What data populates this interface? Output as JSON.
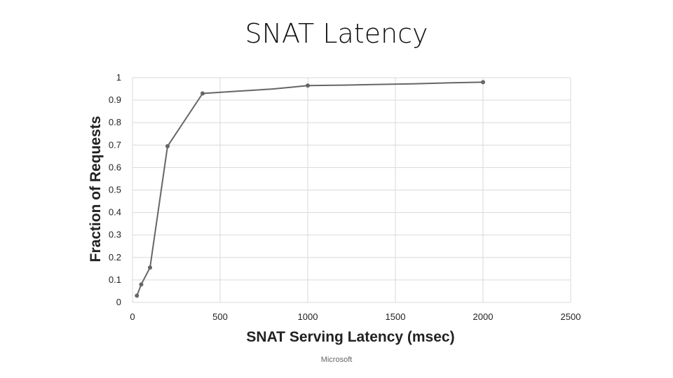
{
  "slide": {
    "title": "SNAT Latency",
    "footer": "Microsoft"
  },
  "chart_data": {
    "type": "line",
    "title": "",
    "xlabel": "SNAT Serving Latency (msec)",
    "ylabel": "Fraction of Requests",
    "xlim": [
      0,
      2500
    ],
    "ylim": [
      0,
      1
    ],
    "x_ticks": [
      0,
      500,
      1000,
      1500,
      2000,
      2500
    ],
    "y_ticks": [
      0,
      0.1,
      0.2,
      0.3,
      0.4,
      0.5,
      0.6,
      0.7,
      0.8,
      0.9,
      1
    ],
    "y_tick_labels": [
      "0",
      "0.1",
      "0.2",
      "0.3",
      "0.4",
      "0.5",
      "0.6",
      "0.7",
      "0.8",
      "0.9",
      "1"
    ],
    "grid": true,
    "legend": "none",
    "line_color": "#666666",
    "series": [
      {
        "x": [
          25,
          50,
          100,
          200,
          400,
          500,
          600,
          700,
          800,
          900,
          1000,
          1200,
          1400,
          1600,
          1800,
          2000
        ],
        "y": [
          0.03,
          0.08,
          0.155,
          0.695,
          0.93,
          0.935,
          0.94,
          0.945,
          0.95,
          0.957,
          0.965,
          0.967,
          0.97,
          0.973,
          0.977,
          0.98
        ],
        "markers_at": [
          25,
          50,
          100,
          200,
          400,
          1000,
          2000
        ]
      }
    ]
  }
}
